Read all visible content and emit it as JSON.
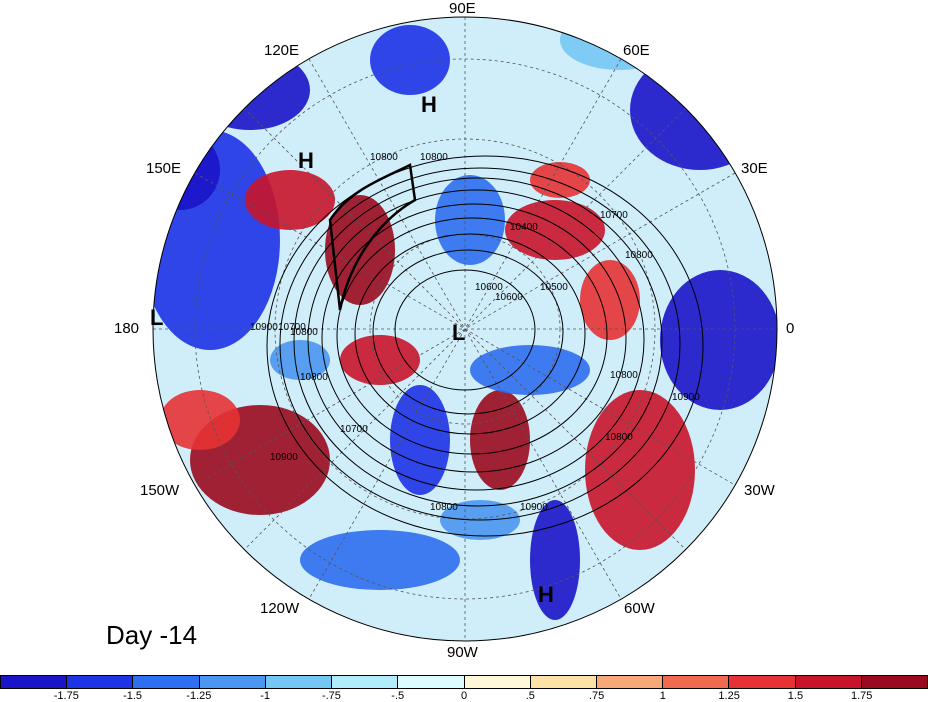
{
  "map": {
    "projection": "north-polar-stereographic",
    "day_label": "Day -14",
    "lon_labels": [
      "90E",
      "60E",
      "120E",
      "30E",
      "150E",
      "180",
      "0",
      "150W",
      "30W",
      "120W",
      "60W",
      "90W"
    ],
    "contour_labels": [
      "10800",
      "10400",
      "10700",
      "10600",
      "10800",
      "10700",
      "10900",
      "10800",
      "10800",
      "10900",
      "10800",
      "10700",
      "10900",
      "10800",
      "10900",
      "10800",
      "10600",
      "10500",
      "10800"
    ],
    "highs_lows": [
      "H",
      "H",
      "L",
      "L",
      "H"
    ]
  },
  "colorbar": {
    "ticks": [
      "-1.75",
      "-1.5",
      "-1.25",
      "-1",
      "-.75",
      "-.5",
      "0",
      ".5",
      ".75",
      "1",
      "1.25",
      "1.5",
      "1.75"
    ],
    "colors": [
      "#1a14c8",
      "#1e32e6",
      "#2e6ef0",
      "#4a96f0",
      "#74c6f5",
      "#b0ecfa",
      "#ddfcff",
      "#fff8d8",
      "#fde2a8",
      "#f7a878",
      "#f06a50",
      "#e63234",
      "#c8142a",
      "#9a0a1e"
    ]
  }
}
